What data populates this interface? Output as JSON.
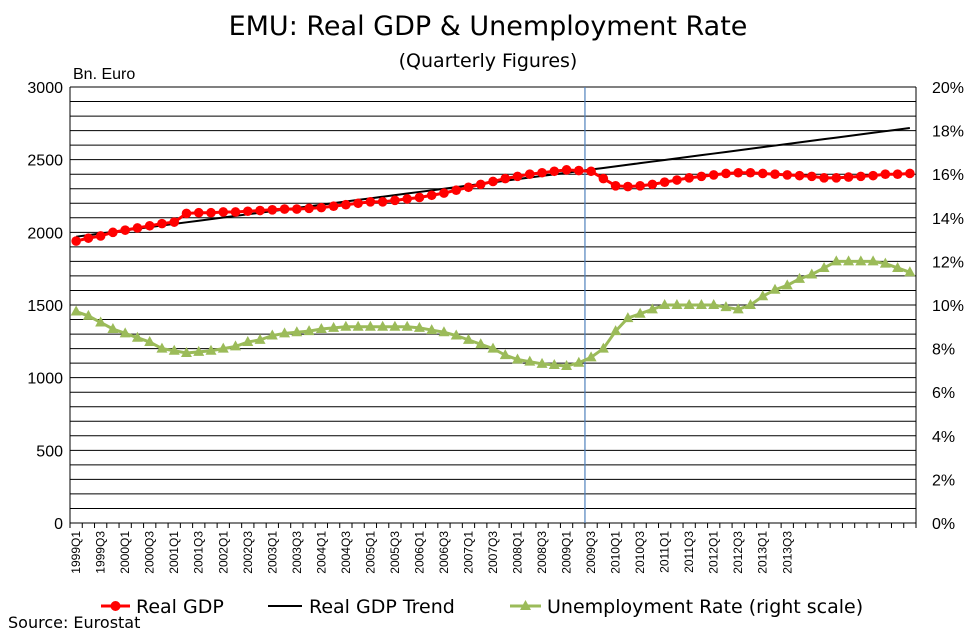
{
  "chart_data": {
    "type": "line",
    "title": "EMU: Real GDP & Unemployment Rate",
    "subtitle": "(Quarterly Figures)",
    "ylabel_left": "Bn. Euro",
    "source": "Source: Eurostat",
    "ylim_left": [
      0,
      3000
    ],
    "yticks_left": [
      "0",
      "500",
      "1000",
      "1500",
      "2000",
      "2500",
      "3000"
    ],
    "ylim_right": [
      0,
      20
    ],
    "yticks_right": [
      "0%",
      "2%",
      "4%",
      "6%",
      "8%",
      "10%",
      "12%",
      "14%",
      "16%",
      "18%",
      "20%"
    ],
    "x_tick_labels": [
      "1999Q1",
      "1999Q3",
      "2000Q1",
      "2000Q3",
      "2001Q1",
      "2001Q3",
      "2002Q1",
      "2002Q3",
      "2003Q1",
      "2003Q3",
      "2004Q1",
      "2004Q3",
      "2005Q1",
      "2005Q3",
      "2006Q1",
      "2006Q3",
      "2007Q1",
      "2007Q3",
      "2008Q1",
      "2008Q3",
      "2009Q1",
      "2009Q3",
      "2010Q1",
      "2010Q3",
      "2011Q1",
      "2011Q3",
      "2012Q1",
      "2012Q3",
      "2013Q1",
      "2013Q3"
    ],
    "grid": true,
    "legend_placement": "bottom",
    "series": [
      {
        "name": "Real GDP",
        "axis": "left",
        "color": "#ff0000",
        "marker": "circle",
        "values": [
          1940,
          1960,
          1975,
          2000,
          2015,
          2030,
          2045,
          2060,
          2070,
          2130,
          2135,
          2135,
          2140,
          2140,
          2145,
          2150,
          2155,
          2160,
          2160,
          2165,
          2170,
          2180,
          2190,
          2200,
          2210,
          2210,
          2220,
          2230,
          2240,
          2255,
          2270,
          2290,
          2310,
          2330,
          2350,
          2370,
          2385,
          2400,
          2410,
          2420,
          2430,
          2425,
          2420,
          2370,
          2320,
          2315,
          2320,
          2330,
          2345,
          2360,
          2375,
          2385,
          2395,
          2405,
          2410,
          2410,
          2405,
          2400,
          2395,
          2390,
          2385,
          2375,
          2375,
          2380,
          2385,
          2390,
          2400,
          2400,
          2405
        ]
      },
      {
        "name": "Real GDP Trend",
        "axis": "left",
        "color": "#000000",
        "marker": "none",
        "start": 1970,
        "step": 11
      },
      {
        "name": "Unemployment Rate (right scale)",
        "axis": "right",
        "color": "#9bbb59",
        "marker": "triangle",
        "values": [
          9.7,
          9.5,
          9.2,
          8.9,
          8.7,
          8.5,
          8.3,
          8.0,
          7.9,
          7.8,
          7.85,
          7.9,
          8.0,
          8.1,
          8.3,
          8.4,
          8.6,
          8.7,
          8.75,
          8.8,
          8.9,
          8.95,
          9.0,
          9.0,
          9.0,
          9.0,
          9.0,
          9.0,
          8.95,
          8.85,
          8.75,
          8.6,
          8.4,
          8.2,
          8.0,
          7.7,
          7.5,
          7.4,
          7.3,
          7.25,
          7.2,
          7.35,
          7.6,
          8.0,
          8.8,
          9.4,
          9.6,
          9.8,
          10.0,
          10.0,
          10.0,
          10.0,
          10.0,
          9.9,
          9.8,
          10.0,
          10.4,
          10.7,
          10.9,
          11.2,
          11.4,
          11.7,
          12.0,
          12.0,
          12.0,
          12.0,
          11.9,
          11.7,
          11.5
        ]
      }
    ],
    "crisis_line_after_index": 41
  }
}
